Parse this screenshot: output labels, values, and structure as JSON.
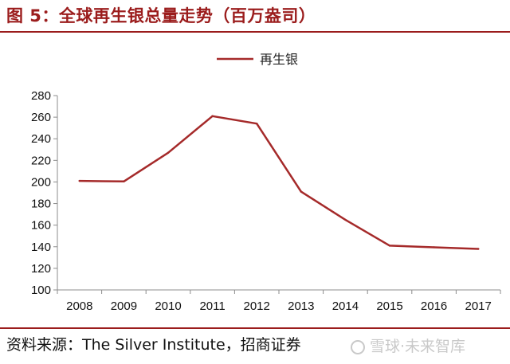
{
  "figure": {
    "title": "图 5：全球再生银总量走势（百万盎司）",
    "source": "资料来源：The Silver Institute，招商证券",
    "watermark": "雪球·未来智库"
  },
  "colors": {
    "accent": "#9b1c1c",
    "series_line": "#a52a2a",
    "axis": "#8c8c8c"
  },
  "chart_data": {
    "type": "line",
    "title": "",
    "xlabel": "",
    "ylabel": "",
    "categories": [
      "2008",
      "2009",
      "2010",
      "2011",
      "2012",
      "2013",
      "2014",
      "2015",
      "2016",
      "2017"
    ],
    "series": [
      {
        "name": "再生银",
        "values": [
          201,
          200.5,
          227,
          261,
          254,
          191,
          165,
          141,
          139.5,
          138
        ]
      }
    ],
    "ylim": [
      100,
      280
    ],
    "yticks": [
      100,
      120,
      140,
      160,
      180,
      200,
      220,
      240,
      260,
      280
    ],
    "grid": false,
    "legend": "top-center"
  }
}
